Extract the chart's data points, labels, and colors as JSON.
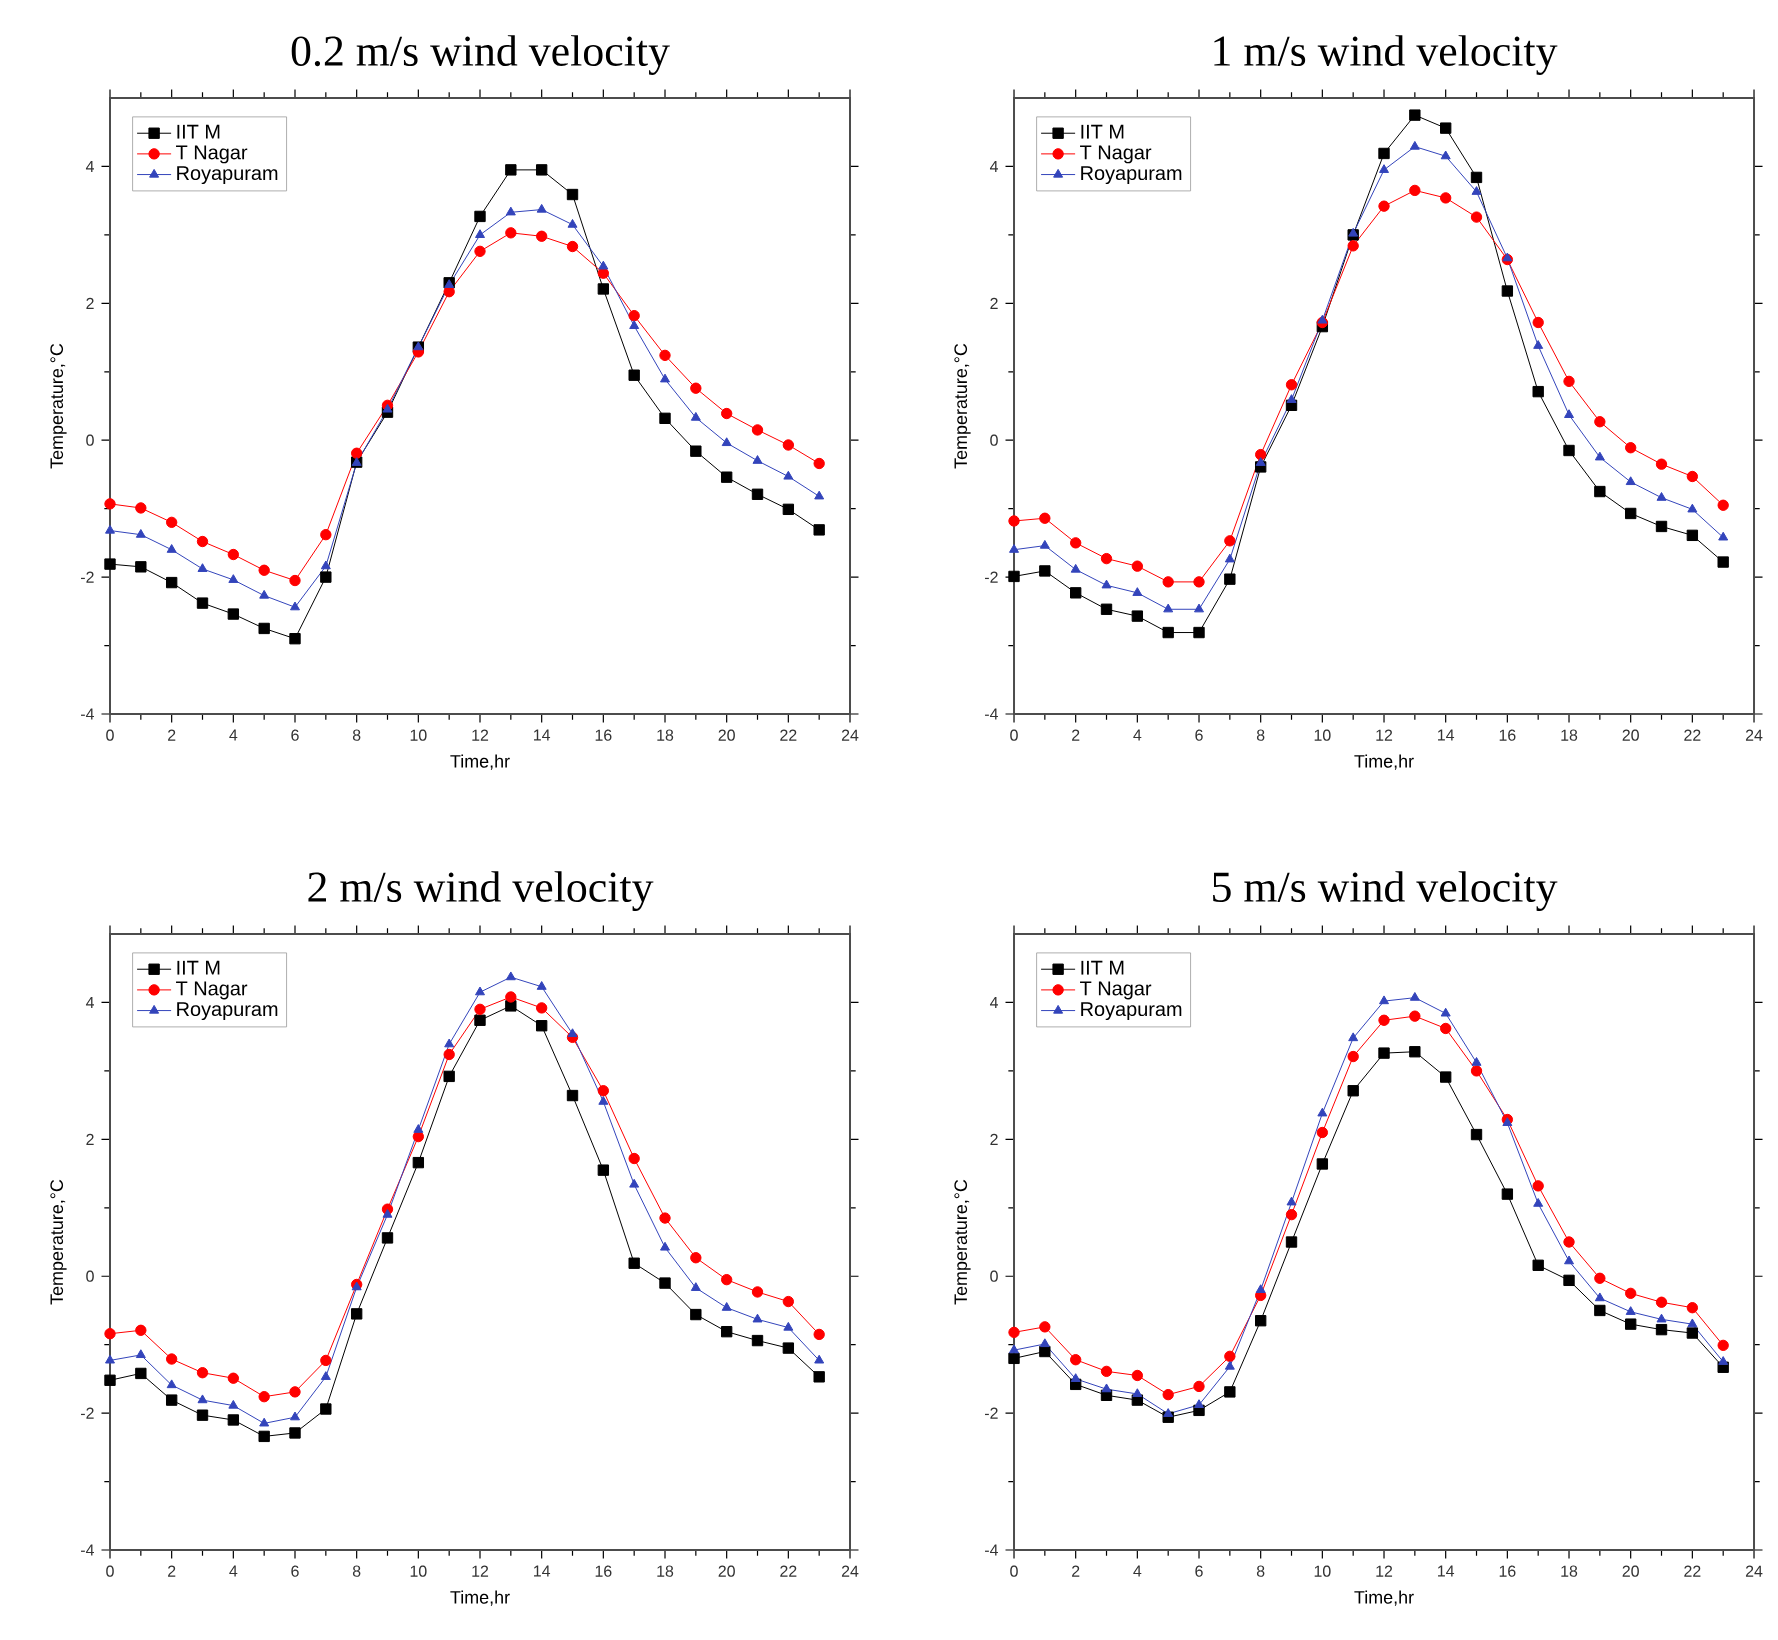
{
  "chart_data": [
    {
      "type": "line",
      "title": "0.2 m/s wind velocity",
      "xlabel": "Time,hr",
      "ylabel": "Temperature,°C",
      "x": [
        0,
        1,
        2,
        3,
        4,
        5,
        6,
        7,
        8,
        9,
        10,
        11,
        12,
        13,
        14,
        15,
        16,
        17,
        18,
        19,
        20,
        21,
        22,
        23
      ],
      "xlim": [
        0,
        24
      ],
      "ylim": [
        -4,
        5
      ],
      "xticks": [
        0,
        2,
        4,
        6,
        8,
        10,
        12,
        14,
        16,
        18,
        20,
        22,
        24
      ],
      "yticks": [
        -4,
        -2,
        0,
        2,
        4
      ],
      "legend": "top left",
      "series": [
        {
          "name": "IIT M",
          "color": "#000000",
          "marker": "square",
          "values": [
            -1.81,
            -1.85,
            -2.08,
            -2.38,
            -2.54,
            -2.75,
            -2.9,
            -2.0,
            -0.32,
            0.41,
            1.36,
            2.3,
            3.27,
            3.95,
            3.95,
            3.59,
            2.21,
            0.95,
            0.32,
            -0.16,
            -0.54,
            -0.79,
            -1.01,
            -1.31
          ]
        },
        {
          "name": "T Nagar",
          "color": "#ff0000",
          "marker": "circle",
          "values": [
            -0.93,
            -0.99,
            -1.2,
            -1.48,
            -1.67,
            -1.9,
            -2.05,
            -1.38,
            -0.19,
            0.51,
            1.29,
            2.17,
            2.76,
            3.03,
            2.98,
            2.83,
            2.44,
            1.82,
            1.24,
            0.76,
            0.39,
            0.15,
            -0.07,
            -0.34
          ]
        },
        {
          "name": "Royapuram",
          "color": "#3344bb",
          "marker": "triangle",
          "values": [
            -1.32,
            -1.38,
            -1.6,
            -1.88,
            -2.04,
            -2.27,
            -2.44,
            -1.84,
            -0.33,
            0.45,
            1.36,
            2.27,
            3.0,
            3.33,
            3.37,
            3.15,
            2.54,
            1.67,
            0.89,
            0.33,
            -0.04,
            -0.3,
            -0.53,
            -0.82
          ]
        }
      ]
    },
    {
      "type": "line",
      "title": "1 m/s wind velocity",
      "xlabel": "Time,hr",
      "ylabel": "Temperature,°C",
      "x": [
        0,
        1,
        2,
        3,
        4,
        5,
        6,
        7,
        8,
        9,
        10,
        11,
        12,
        13,
        14,
        15,
        16,
        17,
        18,
        19,
        20,
        21,
        22,
        23
      ],
      "xlim": [
        0,
        24
      ],
      "ylim": [
        -4,
        5
      ],
      "xticks": [
        0,
        2,
        4,
        6,
        8,
        10,
        12,
        14,
        16,
        18,
        20,
        22,
        24
      ],
      "yticks": [
        -4,
        -2,
        0,
        2,
        4
      ],
      "legend": "top left",
      "series": [
        {
          "name": "IIT M",
          "color": "#000000",
          "marker": "square",
          "values": [
            -1.99,
            -1.91,
            -2.23,
            -2.47,
            -2.57,
            -2.81,
            -2.81,
            -2.03,
            -0.39,
            0.51,
            1.66,
            3.0,
            4.19,
            4.75,
            4.56,
            3.84,
            2.18,
            0.71,
            -0.15,
            -0.75,
            -1.07,
            -1.26,
            -1.39,
            -1.78
          ]
        },
        {
          "name": "T Nagar",
          "color": "#ff0000",
          "marker": "circle",
          "values": [
            -1.18,
            -1.14,
            -1.5,
            -1.73,
            -1.84,
            -2.07,
            -2.07,
            -1.47,
            -0.21,
            0.81,
            1.72,
            2.84,
            3.42,
            3.65,
            3.54,
            3.26,
            2.64,
            1.72,
            0.86,
            0.27,
            -0.11,
            -0.35,
            -0.53,
            -0.95
          ]
        },
        {
          "name": "Royapuram",
          "color": "#3344bb",
          "marker": "triangle",
          "values": [
            -1.6,
            -1.54,
            -1.89,
            -2.12,
            -2.23,
            -2.47,
            -2.47,
            -1.74,
            -0.33,
            0.59,
            1.75,
            3.02,
            3.95,
            4.29,
            4.15,
            3.63,
            2.66,
            1.38,
            0.37,
            -0.25,
            -0.61,
            -0.84,
            -1.01,
            -1.42
          ]
        }
      ]
    },
    {
      "type": "line",
      "title": "2 m/s wind velocity",
      "xlabel": "Time,hr",
      "ylabel": "Temperature,°C",
      "x": [
        0,
        1,
        2,
        3,
        4,
        5,
        6,
        7,
        8,
        9,
        10,
        11,
        12,
        13,
        14,
        15,
        16,
        17,
        18,
        19,
        20,
        21,
        22,
        23
      ],
      "xlim": [
        0,
        24
      ],
      "ylim": [
        -4,
        5
      ],
      "xticks": [
        0,
        2,
        4,
        6,
        8,
        10,
        12,
        14,
        16,
        18,
        20,
        22,
        24
      ],
      "yticks": [
        -4,
        -2,
        0,
        2,
        4
      ],
      "legend": "top left",
      "series": [
        {
          "name": "IIT M",
          "color": "#000000",
          "marker": "square",
          "values": [
            -1.52,
            -1.42,
            -1.81,
            -2.03,
            -2.1,
            -2.34,
            -2.29,
            -1.94,
            -0.55,
            0.56,
            1.66,
            2.92,
            3.74,
            3.95,
            3.66,
            2.64,
            1.55,
            0.19,
            -0.1,
            -0.56,
            -0.81,
            -0.94,
            -1.05,
            -1.47
          ]
        },
        {
          "name": "T Nagar",
          "color": "#ff0000",
          "marker": "circle",
          "values": [
            -0.84,
            -0.79,
            -1.21,
            -1.41,
            -1.49,
            -1.76,
            -1.69,
            -1.23,
            -0.12,
            0.98,
            2.04,
            3.24,
            3.9,
            4.08,
            3.92,
            3.49,
            2.71,
            1.72,
            0.85,
            0.27,
            -0.05,
            -0.23,
            -0.37,
            -0.85
          ]
        },
        {
          "name": "Royapuram",
          "color": "#3344bb",
          "marker": "triangle",
          "values": [
            -1.23,
            -1.15,
            -1.59,
            -1.81,
            -1.89,
            -2.15,
            -2.06,
            -1.47,
            -0.16,
            0.9,
            2.14,
            3.39,
            4.15,
            4.37,
            4.23,
            3.54,
            2.55,
            1.34,
            0.42,
            -0.17,
            -0.46,
            -0.63,
            -0.75,
            -1.23
          ]
        }
      ]
    },
    {
      "type": "line",
      "title": "5 m/s wind velocity",
      "xlabel": "Time,hr",
      "ylabel": "Temperature,°C",
      "x": [
        0,
        1,
        2,
        3,
        4,
        5,
        6,
        7,
        8,
        9,
        10,
        11,
        12,
        13,
        14,
        15,
        16,
        17,
        18,
        19,
        20,
        21,
        22,
        23
      ],
      "xlim": [
        0,
        24
      ],
      "ylim": [
        -4,
        5
      ],
      "xticks": [
        0,
        2,
        4,
        6,
        8,
        10,
        12,
        14,
        16,
        18,
        20,
        22,
        24
      ],
      "yticks": [
        -4,
        -2,
        0,
        2,
        4
      ],
      "legend": "top left",
      "series": [
        {
          "name": "IIT M",
          "color": "#000000",
          "marker": "square",
          "values": [
            -1.2,
            -1.1,
            -1.58,
            -1.74,
            -1.81,
            -2.06,
            -1.96,
            -1.69,
            -0.65,
            0.5,
            1.64,
            2.71,
            3.26,
            3.28,
            2.91,
            2.07,
            1.2,
            0.16,
            -0.06,
            -0.5,
            -0.7,
            -0.78,
            -0.83,
            -1.33
          ]
        },
        {
          "name": "T Nagar",
          "color": "#ff0000",
          "marker": "circle",
          "values": [
            -0.82,
            -0.74,
            -1.22,
            -1.39,
            -1.45,
            -1.73,
            -1.61,
            -1.17,
            -0.28,
            0.9,
            2.1,
            3.21,
            3.74,
            3.8,
            3.62,
            3.0,
            2.29,
            1.32,
            0.5,
            -0.03,
            -0.25,
            -0.38,
            -0.46,
            -1.01
          ]
        },
        {
          "name": "Royapuram",
          "color": "#3344bb",
          "marker": "triangle",
          "values": [
            -1.08,
            -0.99,
            -1.5,
            -1.65,
            -1.72,
            -2.01,
            -1.88,
            -1.32,
            -0.2,
            1.08,
            2.38,
            3.48,
            4.02,
            4.07,
            3.84,
            3.12,
            2.24,
            1.06,
            0.22,
            -0.32,
            -0.52,
            -0.63,
            -0.7,
            -1.25
          ]
        }
      ]
    }
  ]
}
